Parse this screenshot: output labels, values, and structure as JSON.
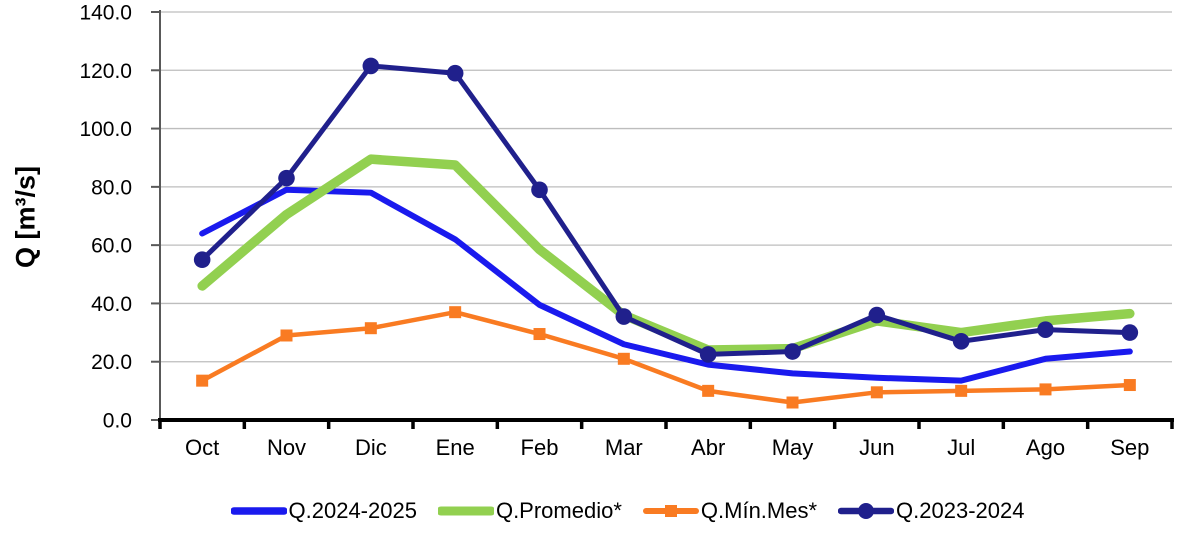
{
  "chart_data": {
    "type": "line",
    "title": "",
    "xlabel": "",
    "ylabel": "Q [m³/s]",
    "ylim": [
      0,
      140
    ],
    "ytick_step": 20,
    "ytick_labels": [
      "0.0",
      "20.0",
      "40.0",
      "60.0",
      "80.0",
      "100.0",
      "120.0",
      "140.0"
    ],
    "grid": true,
    "legend_position": "bottom",
    "categories": [
      "Oct",
      "Nov",
      "Dic",
      "Ene",
      "Feb",
      "Mar",
      "Abr",
      "May",
      "Jun",
      "Jul",
      "Ago",
      "Sep"
    ],
    "series": [
      {
        "name": "Q.2024-2025",
        "color": "#1a1aee",
        "marker": "none",
        "values": [
          64,
          79,
          78,
          62,
          39.5,
          26,
          19,
          16,
          14.5,
          13.5,
          21,
          23.5
        ]
      },
      {
        "name": "Q.Promedio*",
        "color": "#92d050",
        "marker": "none",
        "values": [
          46,
          70.5,
          89.5,
          87.5,
          58.5,
          36,
          24,
          24.5,
          34,
          30,
          34,
          36.5
        ]
      },
      {
        "name": "Q.Mín.Mes*",
        "color": "#f97b22",
        "marker": "square",
        "values": [
          13.5,
          29,
          31.5,
          37,
          29.5,
          21,
          10,
          6,
          9.5,
          10,
          10.5,
          12
        ]
      },
      {
        "name": "Q.2023-2024",
        "color": "#20208c",
        "marker": "circle",
        "values": [
          55,
          83,
          121.5,
          119,
          79,
          35.5,
          22.5,
          23.5,
          36,
          27,
          31,
          30
        ]
      }
    ],
    "colors": {
      "gridline": "#bdbdbd",
      "y_axis": "#595959",
      "x_axis": "#000000",
      "text": "#000000"
    }
  }
}
